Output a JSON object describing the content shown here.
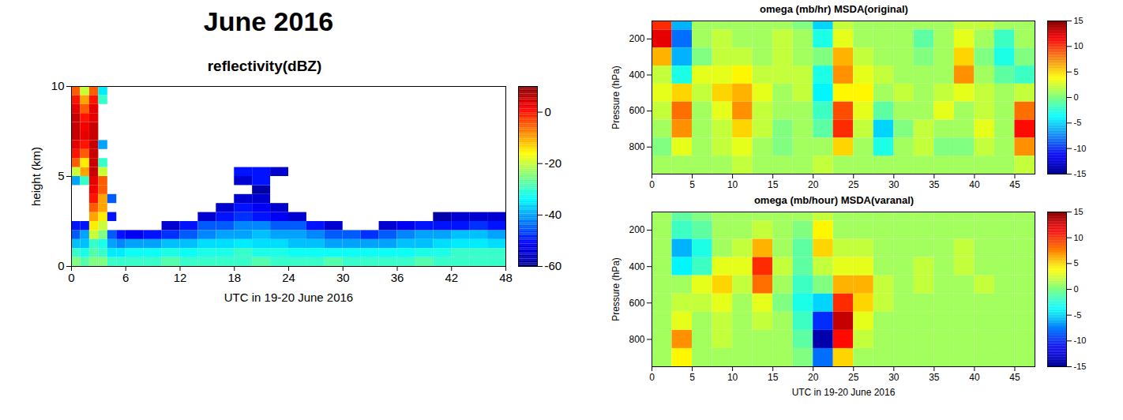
{
  "title": "June 2016",
  "chart_data": [
    {
      "type": "heatmap",
      "title": "reflectivity(dBZ)",
      "xlabel": "UTC in 19-20 June 2016",
      "ylabel": "height (km)",
      "xlim": [
        0,
        48
      ],
      "xticks": [
        0,
        6,
        12,
        18,
        24,
        30,
        36,
        42,
        48
      ],
      "ylim": [
        0,
        10
      ],
      "yticks": [
        0,
        5,
        10
      ],
      "color": "jet",
      "colorbar": {
        "range": [
          -60,
          10
        ],
        "ticks": [
          -60,
          -40,
          -20,
          0
        ]
      },
      "x_bins": [
        0,
        1,
        2,
        3,
        4,
        5,
        6,
        8,
        10,
        12,
        14,
        16,
        18,
        20,
        22,
        24,
        26,
        28,
        30,
        32,
        34,
        36,
        38,
        40,
        42,
        44,
        46,
        48
      ],
      "y_bins": [
        0,
        0.5,
        1,
        1.5,
        2,
        2.5,
        3,
        3.5,
        4,
        4.5,
        5,
        5.5,
        6,
        6.5,
        7,
        7.5,
        8,
        8.5,
        9,
        9.5,
        10
      ],
      "values": [
        [
          -25,
          -28,
          -25,
          -25,
          -30,
          -30,
          -30,
          -30,
          -28,
          -30,
          -30,
          -30,
          -30,
          -28,
          -30,
          -30,
          -30,
          -28,
          -30,
          -30,
          -30,
          -30,
          -28,
          -30,
          -30,
          -30,
          -30
        ],
        [
          -30,
          -32,
          -28,
          -30,
          -35,
          -35,
          -33,
          -33,
          -32,
          -33,
          -32,
          -32,
          -30,
          -32,
          -32,
          -33,
          -33,
          -33,
          -33,
          -33,
          -33,
          -33,
          -32,
          -32,
          -30,
          -30,
          -30
        ],
        [
          -38,
          -38,
          -30,
          -32,
          -40,
          -42,
          -40,
          -40,
          -38,
          -38,
          -36,
          -36,
          -35,
          -36,
          -36,
          -38,
          -38,
          -40,
          -40,
          -40,
          -40,
          -38,
          -38,
          -36,
          -35,
          -35,
          -36
        ],
        [
          -45,
          -40,
          -20,
          -25,
          -45,
          -50,
          -52,
          -50,
          -48,
          -45,
          -42,
          -40,
          -40,
          -38,
          -40,
          -40,
          -42,
          -45,
          -45,
          -48,
          -45,
          -42,
          -40,
          -40,
          -38,
          -38,
          -40
        ],
        [
          -50,
          -50,
          -15,
          -20,
          null,
          null,
          null,
          null,
          -55,
          -50,
          -45,
          -45,
          -42,
          -42,
          -45,
          -45,
          -50,
          -55,
          null,
          null,
          -55,
          -52,
          -50,
          -50,
          -50,
          -48,
          -50
        ],
        [
          null,
          null,
          -10,
          -15,
          -50,
          null,
          null,
          null,
          null,
          null,
          -55,
          -50,
          -48,
          -50,
          -52,
          -55,
          null,
          null,
          null,
          null,
          null,
          null,
          null,
          -58,
          -55,
          -55,
          -55
        ],
        [
          null,
          null,
          -5,
          -10,
          null,
          null,
          null,
          null,
          null,
          null,
          null,
          -55,
          -50,
          -52,
          -55,
          null,
          null,
          null,
          null,
          null,
          null,
          null,
          null,
          null,
          null,
          null,
          null
        ],
        [
          null,
          null,
          0,
          -10,
          -45,
          null,
          null,
          null,
          null,
          null,
          null,
          null,
          -55,
          -55,
          null,
          null,
          null,
          null,
          null,
          null,
          null,
          null,
          null,
          null,
          null,
          null,
          null
        ],
        [
          null,
          null,
          2,
          -5,
          null,
          null,
          null,
          null,
          null,
          null,
          null,
          null,
          null,
          -58,
          null,
          null,
          null,
          null,
          null,
          null,
          null,
          null,
          null,
          null,
          null,
          null,
          null
        ],
        [
          -40,
          -30,
          3,
          -5,
          null,
          null,
          null,
          null,
          null,
          null,
          null,
          null,
          -55,
          -50,
          null,
          null,
          null,
          null,
          null,
          null,
          null,
          null,
          null,
          null,
          null,
          null,
          null
        ],
        [
          -20,
          -10,
          5,
          -20,
          null,
          null,
          null,
          null,
          null,
          null,
          null,
          null,
          -50,
          -50,
          -55,
          null,
          null,
          null,
          null,
          null,
          null,
          null,
          null,
          null,
          null,
          null,
          null
        ],
        [
          -5,
          -15,
          5,
          -30,
          null,
          null,
          null,
          null,
          null,
          null,
          null,
          null,
          null,
          null,
          null,
          null,
          null,
          null,
          null,
          null,
          null,
          null,
          null,
          null,
          null,
          null,
          null
        ],
        [
          0,
          -5,
          5,
          null,
          null,
          null,
          null,
          null,
          null,
          null,
          null,
          null,
          null,
          null,
          null,
          null,
          null,
          null,
          null,
          null,
          null,
          null,
          null,
          null,
          null,
          null,
          null
        ],
        [
          3,
          0,
          5,
          -40,
          null,
          null,
          null,
          null,
          null,
          null,
          null,
          null,
          null,
          null,
          null,
          null,
          null,
          null,
          null,
          null,
          null,
          null,
          null,
          null,
          null,
          null,
          null
        ],
        [
          5,
          3,
          5,
          null,
          null,
          null,
          null,
          null,
          null,
          null,
          null,
          null,
          null,
          null,
          null,
          null,
          null,
          null,
          null,
          null,
          null,
          null,
          null,
          null,
          null,
          null,
          null
        ],
        [
          5,
          2,
          5,
          null,
          null,
          null,
          null,
          null,
          null,
          null,
          null,
          null,
          null,
          null,
          null,
          null,
          null,
          null,
          null,
          null,
          null,
          null,
          null,
          null,
          null,
          null,
          null
        ],
        [
          5,
          0,
          3,
          null,
          null,
          null,
          null,
          null,
          null,
          null,
          null,
          null,
          null,
          null,
          null,
          null,
          null,
          null,
          null,
          null,
          null,
          null,
          null,
          null,
          null,
          null,
          null
        ],
        [
          3,
          -5,
          3,
          null,
          null,
          null,
          null,
          null,
          null,
          null,
          null,
          null,
          null,
          null,
          null,
          null,
          null,
          null,
          null,
          null,
          null,
          null,
          null,
          null,
          null,
          null,
          null
        ],
        [
          0,
          -10,
          0,
          -30,
          null,
          null,
          null,
          null,
          null,
          null,
          null,
          null,
          null,
          null,
          null,
          null,
          null,
          null,
          null,
          null,
          null,
          null,
          null,
          null,
          null,
          null,
          null
        ],
        [
          -5,
          -20,
          -5,
          -35,
          null,
          null,
          null,
          null,
          null,
          null,
          null,
          null,
          null,
          null,
          null,
          null,
          null,
          null,
          null,
          null,
          null,
          null,
          null,
          null,
          null,
          null,
          null
        ]
      ]
    },
    {
      "type": "heatmap",
      "title": "omega (mb/hr) MSDA(original)",
      "ylabel": "Pressure (hPa)",
      "xlim": [
        0,
        47.5
      ],
      "xticks": [
        0,
        5,
        10,
        15,
        20,
        25,
        30,
        35,
        40,
        45
      ],
      "ylim": [
        950,
        100
      ],
      "yticks": [
        200,
        400,
        600,
        800
      ],
      "color": "jet",
      "colorbar": {
        "range": [
          -15,
          15
        ],
        "ticks": [
          -15,
          -10,
          -5,
          0,
          5,
          10,
          15
        ]
      },
      "x_bins": [
        0,
        2.5,
        5,
        7.5,
        10,
        12.5,
        15,
        17.5,
        20,
        22.5,
        25,
        27.5,
        30,
        32.5,
        35,
        37.5,
        40,
        42.5,
        45,
        47.5
      ],
      "y_bins": [
        100,
        150,
        250,
        350,
        450,
        550,
        650,
        750,
        850,
        950
      ],
      "values": [
        [
          10,
          -6,
          1,
          1,
          1,
          1,
          1,
          0,
          -5,
          2,
          1,
          1,
          1,
          1,
          1,
          2,
          2,
          1,
          1
        ],
        [
          12,
          -8,
          1,
          2,
          1,
          1,
          2,
          1,
          -3,
          3,
          1,
          1,
          1,
          -1,
          1,
          3,
          1,
          -2,
          1
        ],
        [
          6,
          -6,
          0,
          2,
          2,
          1,
          2,
          1,
          0,
          6,
          2,
          1,
          1,
          0,
          1,
          5,
          0,
          -3,
          0
        ],
        [
          2,
          -3,
          3,
          3,
          4,
          2,
          2,
          2,
          -3,
          7,
          3,
          2,
          1,
          1,
          1,
          7,
          1,
          -1,
          -2
        ],
        [
          3,
          5,
          2,
          5,
          6,
          3,
          1,
          2,
          -4,
          4,
          4,
          1,
          2,
          1,
          2,
          3,
          2,
          1,
          2
        ],
        [
          2,
          8,
          1,
          3,
          7,
          2,
          1,
          1,
          -2,
          9,
          3,
          -1,
          1,
          1,
          3,
          1,
          2,
          1,
          8
        ],
        [
          1,
          7,
          1,
          2,
          5,
          2,
          0,
          1,
          -1,
          10,
          2,
          -5,
          0,
          2,
          1,
          1,
          3,
          1,
          11
        ],
        [
          0,
          3,
          1,
          2,
          3,
          1,
          0,
          1,
          1,
          5,
          1,
          -3,
          1,
          2,
          0,
          0,
          2,
          1,
          7
        ],
        [
          1,
          1,
          1,
          1,
          2,
          1,
          1,
          1,
          2,
          1,
          1,
          1,
          1,
          1,
          1,
          1,
          1,
          1,
          2
        ]
      ]
    },
    {
      "type": "heatmap",
      "title": "omega (mb/hour) MSDA(varanal)",
      "xlabel": "UTC in 19-20 June 2016",
      "ylabel": "Pressure (hPa)",
      "xlim": [
        0,
        47.5
      ],
      "xticks": [
        0,
        5,
        10,
        15,
        20,
        25,
        30,
        35,
        40,
        45
      ],
      "ylim": [
        950,
        100
      ],
      "yticks": [
        200,
        400,
        600,
        800
      ],
      "color": "jet",
      "colorbar": {
        "range": [
          -15,
          15
        ],
        "ticks": [
          -15,
          -10,
          -5,
          0,
          5,
          10,
          15
        ]
      },
      "x_bins": [
        0,
        2.5,
        5,
        7.5,
        10,
        12.5,
        15,
        17.5,
        20,
        22.5,
        25,
        27.5,
        30,
        32.5,
        35,
        37.5,
        40,
        42.5,
        45,
        47.5
      ],
      "y_bins": [
        100,
        150,
        250,
        350,
        450,
        550,
        650,
        750,
        850,
        950
      ],
      "values": [
        [
          1,
          -1,
          0,
          1,
          1,
          1,
          1,
          1,
          2,
          1,
          1,
          1,
          1,
          1,
          1,
          1,
          1,
          1,
          1
        ],
        [
          1,
          -2,
          -1,
          1,
          1,
          2,
          1,
          0,
          4,
          1,
          1,
          1,
          1,
          1,
          1,
          1,
          1,
          1,
          1
        ],
        [
          1,
          -6,
          -3,
          1,
          2,
          6,
          1,
          -1,
          5,
          2,
          2,
          1,
          1,
          1,
          1,
          2,
          1,
          1,
          1
        ],
        [
          1,
          -4,
          -2,
          3,
          3,
          10,
          2,
          -1,
          2,
          3,
          3,
          1,
          1,
          2,
          1,
          2,
          1,
          1,
          1
        ],
        [
          1,
          1,
          3,
          5,
          2,
          8,
          1,
          -2,
          0,
          6,
          6,
          2,
          1,
          2,
          1,
          1,
          2,
          1,
          1
        ],
        [
          1,
          2,
          2,
          3,
          1,
          3,
          0,
          -3,
          -5,
          10,
          5,
          2,
          1,
          1,
          1,
          1,
          1,
          1,
          1
        ],
        [
          1,
          3,
          1,
          2,
          1,
          2,
          1,
          -2,
          -10,
          13,
          3,
          1,
          1,
          1,
          1,
          1,
          1,
          1,
          1
        ],
        [
          1,
          7,
          1,
          2,
          1,
          1,
          1,
          -1,
          -14,
          11,
          2,
          1,
          1,
          1,
          1,
          1,
          1,
          1,
          1
        ],
        [
          1,
          4,
          1,
          1,
          1,
          1,
          1,
          0,
          -8,
          5,
          1,
          1,
          1,
          1,
          1,
          1,
          1,
          1,
          1
        ]
      ]
    }
  ]
}
